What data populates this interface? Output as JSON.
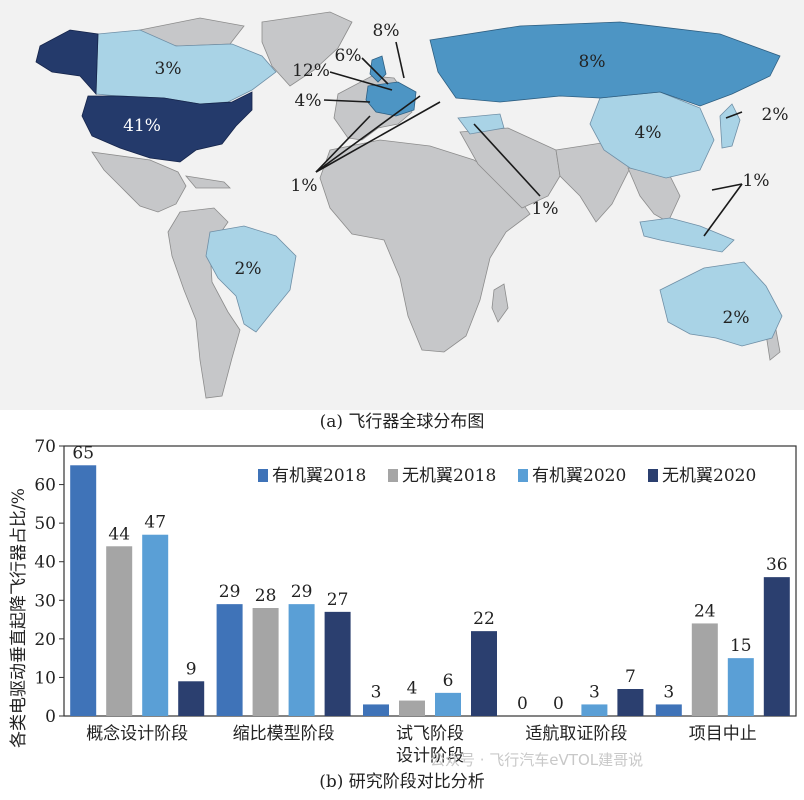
{
  "map": {
    "caption": "(a) 飞行器全球分布图",
    "colors": {
      "ocean": "#f2f2f2",
      "land": "#c6c7c9",
      "border": "#8c8c8c",
      "very_light": "#a9d3e6",
      "light": "#88c4de",
      "medium": "#4d95c4",
      "dark": "#243a6b"
    },
    "labels": [
      {
        "id": "usa",
        "text": "41%"
      },
      {
        "id": "canada",
        "text": "3%"
      },
      {
        "id": "russia",
        "text": "8%"
      },
      {
        "id": "china",
        "text": "4%"
      },
      {
        "id": "japan",
        "text": "2%"
      },
      {
        "id": "brazil",
        "text": "2%"
      },
      {
        "id": "australia",
        "text": "2%"
      },
      {
        "id": "germany",
        "text": "8%"
      },
      {
        "id": "uk",
        "text": "6%"
      },
      {
        "id": "france",
        "text": "12%"
      },
      {
        "id": "spain",
        "text": "4%"
      },
      {
        "id": "europe-small",
        "text": "1%"
      },
      {
        "id": "middle-east",
        "text": "1%"
      },
      {
        "id": "se-asia",
        "text": "1%"
      }
    ]
  },
  "chart_data": {
    "type": "bar",
    "title": "",
    "caption": "(b) 研究阶段对比分析",
    "ylabel": "各类电驱动垂直起降飞行器占比/%",
    "xlabel": "",
    "ylim": [
      0,
      70
    ],
    "yticks": [
      0,
      10,
      20,
      30,
      40,
      50,
      60,
      70
    ],
    "grid": false,
    "legend_position": "top-right",
    "categories": [
      "概念设计阶段",
      "缩比模型阶段",
      "试飞阶段设计阶段",
      "适航取证阶段",
      "项目中止"
    ],
    "category_lines": [
      [
        "概念设计阶段"
      ],
      [
        "缩比模型阶段"
      ],
      [
        "试飞阶段",
        "设计阶段"
      ],
      [
        "适航取证阶段"
      ],
      [
        "项目中止"
      ]
    ],
    "series": [
      {
        "name": "有机翼2018",
        "color": "#3f73b8",
        "values": [
          65,
          29,
          3,
          0,
          3
        ]
      },
      {
        "name": "无机翼2018",
        "color": "#a5a5a5",
        "values": [
          44,
          28,
          4,
          0,
          24
        ]
      },
      {
        "name": "有机翼2020",
        "color": "#5a9fd6",
        "values": [
          47,
          29,
          6,
          3,
          15
        ]
      },
      {
        "name": "无机翼2020",
        "color": "#2b3f6f",
        "values": [
          9,
          27,
          22,
          7,
          36
        ]
      }
    ]
  },
  "watermark": "公众号 · 飞行汽车eVTOL建哥说"
}
